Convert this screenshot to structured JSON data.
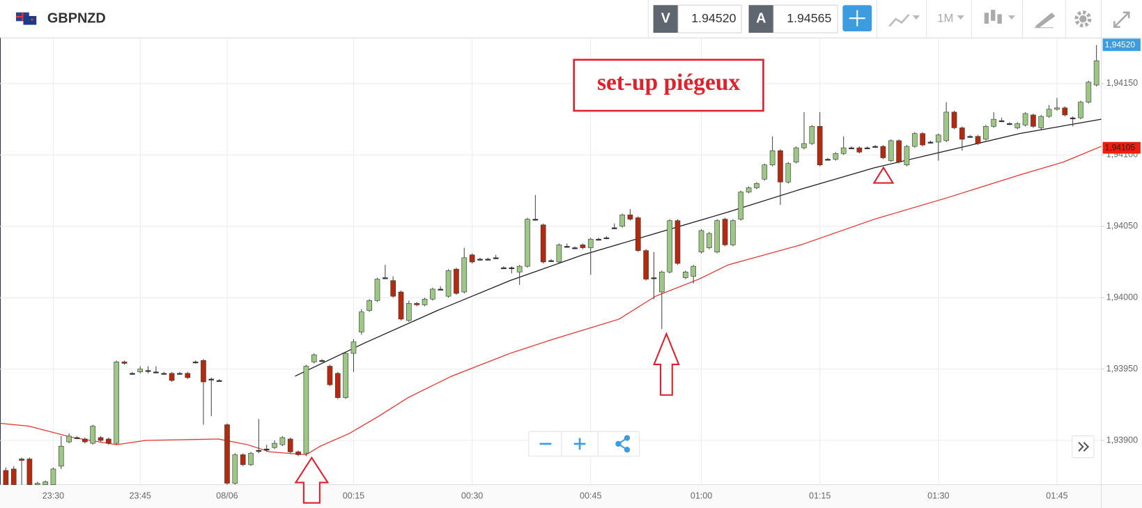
{
  "header": {
    "symbol": "GBPNZD",
    "sell_label": "V",
    "sell_price": "1.94520",
    "buy_label": "A",
    "buy_price": "1.94565",
    "timeframe": "1M"
  },
  "chart_data": {
    "type": "candlestick",
    "annotation": "set-up piégeux",
    "price_marker": "1,94520",
    "ma_marker": {
      "value": 1.94105,
      "label": "1,94105"
    },
    "up_color": "#9dc784",
    "down_color": "#b5290f",
    "xlim": [
      -0.74,
      138.6
    ],
    "ylim": [
      1.93869,
      1.94182
    ],
    "yticks": [
      {
        "value": 1.939,
        "label": "1,93900"
      },
      {
        "value": 1.9395,
        "label": "1,93950"
      },
      {
        "value": 1.94,
        "label": "1,94000"
      },
      {
        "value": 1.9405,
        "label": "1,94050"
      },
      {
        "value": 1.941,
        "label": "1,94100"
      },
      {
        "value": 1.9415,
        "label": "1,94150"
      }
    ],
    "grid": true,
    "categories": [
      null,
      null,
      null,
      null,
      null,
      null,
      "23:30",
      null,
      null,
      null,
      null,
      null,
      null,
      null,
      null,
      null,
      null,
      "23:45",
      null,
      null,
      null,
      null,
      null,
      null,
      null,
      null,
      null,
      null,
      "08/06",
      null,
      null,
      null,
      null,
      null,
      null,
      null,
      null,
      null,
      null,
      null,
      null,
      null,
      null,
      null,
      "00:15",
      null,
      null,
      null,
      null,
      null,
      null,
      null,
      null,
      null,
      null,
      null,
      null,
      null,
      null,
      "00:30",
      null,
      null,
      null,
      null,
      null,
      null,
      null,
      null,
      null,
      null,
      null,
      null,
      null,
      null,
      "00:45",
      null,
      null,
      null,
      null,
      null,
      null,
      null,
      null,
      null,
      null,
      null,
      null,
      null,
      "01:00",
      null,
      null,
      null,
      null,
      null,
      null,
      null,
      null,
      null,
      null,
      null,
      null,
      null,
      null,
      "01:15",
      null,
      null,
      null,
      null,
      null,
      null,
      null,
      null,
      null,
      null,
      null,
      null,
      null,
      null,
      "01:30",
      null,
      null,
      null,
      null,
      null,
      null,
      null,
      null,
      null,
      null,
      null,
      null,
      null,
      null,
      "01:45",
      null,
      null,
      null,
      null,
      null
    ],
    "open": [
      1.93879,
      1.9388,
      1.93887,
      1.93887,
      1.93869,
      1.93869,
      1.93869,
      1.93882,
      1.93899,
      1.93902,
      1.93901,
      1.93898,
      1.93902,
      1.93901,
      1.93898,
      1.93955,
      1.93947,
      1.93948,
      1.93949,
      1.93948,
      1.93947,
      1.93947,
      1.93947,
      1.93947,
      1.93955,
      1.93956,
      1.93943,
      1.93942,
      1.93911,
      1.9387,
      1.9389,
      1.93883,
      1.93893,
      1.93894,
      1.93895,
      1.93897,
      1.93901,
      1.93892,
      1.93891,
      1.93955,
      1.93956,
      1.93952,
      1.93947,
      1.9393,
      1.93961,
      1.93976,
      1.93991,
      1.93998,
      1.94014,
      1.94012,
      1.94004,
      1.93984,
      1.93996,
      1.93995,
      1.93999,
      1.94006,
      1.94001,
      1.9402,
      1.94004,
      1.9403,
      1.94027,
      1.94027,
      1.94028,
      1.94021,
      1.94021,
      1.94018,
      1.94022,
      1.94055,
      1.94051,
      1.94026,
      1.94025,
      1.94036,
      1.94035,
      1.94037,
      1.94035,
      1.94041,
      1.94042,
      1.94049,
      1.9405,
      1.94058,
      1.94056,
      1.94033,
      1.94014,
      1.94004,
      1.94018,
      1.94054,
      1.94014,
      1.94015,
      1.94032,
      1.94035,
      1.94032,
      1.94055,
      1.94037,
      1.94055,
      1.94074,
      1.94077,
      1.94083,
      1.94093,
      1.94103,
      1.94081,
      1.94095,
      1.94105,
      1.94108,
      1.9412,
      1.94097,
      1.94097,
      1.94101,
      1.94105,
      1.94105,
      1.94105,
      1.94106,
      1.94106,
      1.94096,
      1.9411,
      1.94093,
      1.94106,
      1.94115,
      1.94109,
      1.94109,
      1.9411,
      1.9413,
      1.94119,
      1.94113,
      1.94113,
      1.94111,
      1.9412,
      1.94124,
      1.94122,
      1.94119,
      1.94121,
      1.94128,
      1.94119,
      1.94127,
      1.94132,
      1.94133,
      1.94126,
      1.94126,
      1.94137,
      1.94149
    ],
    "high": [
      1.93881,
      1.93882,
      1.93888,
      1.93888,
      1.93871,
      1.93872,
      1.93881,
      1.93903,
      1.93905,
      1.93903,
      1.93902,
      1.93911,
      1.93903,
      1.93902,
      1.93956,
      1.93956,
      1.93948,
      1.93952,
      1.93952,
      1.93952,
      1.93948,
      1.93948,
      1.93948,
      1.93948,
      1.93956,
      1.93957,
      1.93944,
      1.93943,
      1.93912,
      1.93891,
      1.93891,
      1.93892,
      1.93915,
      1.93897,
      1.939,
      1.93903,
      1.93902,
      1.93893,
      1.93953,
      1.93961,
      1.93957,
      1.93953,
      1.93948,
      1.93962,
      1.93971,
      1.93992,
      1.93999,
      1.94014,
      1.94023,
      1.94015,
      1.94005,
      1.93998,
      1.93997,
      1.94,
      1.94007,
      1.94008,
      1.9402,
      1.94021,
      1.94035,
      1.94031,
      1.94028,
      1.94028,
      1.9403,
      1.94022,
      1.94022,
      1.94023,
      1.94056,
      1.94072,
      1.94052,
      1.94027,
      1.94038,
      1.94038,
      1.94036,
      1.94038,
      1.94042,
      1.94042,
      1.94043,
      1.94052,
      1.94059,
      1.94062,
      1.94057,
      1.94034,
      1.94032,
      1.94019,
      1.94055,
      1.94055,
      1.94019,
      1.94023,
      1.94048,
      1.94046,
      1.94055,
      1.94056,
      1.94055,
      1.94075,
      1.94078,
      1.94081,
      1.94094,
      1.94113,
      1.94104,
      1.94095,
      1.94106,
      1.9413,
      1.94121,
      1.9413,
      1.94098,
      1.94102,
      1.94113,
      1.94106,
      1.94106,
      1.94106,
      1.94107,
      1.94107,
      1.94111,
      1.94111,
      1.94107,
      1.94116,
      1.94116,
      1.9411,
      1.94115,
      1.94137,
      1.94131,
      1.9412,
      1.94114,
      1.94114,
      1.94121,
      1.9413,
      1.94126,
      1.94123,
      1.94123,
      1.9413,
      1.94129,
      1.94128,
      1.94135,
      1.9414,
      1.94134,
      1.94127,
      1.94138,
      1.94152,
      1.94177
    ],
    "low": [
      1.93869,
      1.93869,
      1.93869,
      1.93869,
      1.93869,
      1.93869,
      1.93869,
      1.9388,
      1.93898,
      1.93901,
      1.93898,
      1.93897,
      1.93899,
      1.93897,
      1.93897,
      1.93953,
      1.93946,
      1.93947,
      1.93947,
      1.93947,
      1.93946,
      1.93941,
      1.93946,
      1.93943,
      1.93954,
      1.93911,
      1.93917,
      1.93941,
      1.93869,
      1.93869,
      1.93882,
      1.93882,
      1.93891,
      1.93892,
      1.93894,
      1.93896,
      1.93891,
      1.93889,
      1.93889,
      1.93954,
      1.93955,
      1.93938,
      1.93929,
      1.93929,
      1.93948,
      1.93974,
      1.9399,
      1.93997,
      1.94013,
      1.94,
      1.93984,
      1.93983,
      1.93994,
      1.93994,
      1.93998,
      1.94005,
      1.94,
      1.94002,
      1.94003,
      1.94024,
      1.94026,
      1.94026,
      1.94027,
      1.9402,
      1.94017,
      1.94009,
      1.94021,
      1.94054,
      1.94024,
      1.94025,
      1.94024,
      1.94035,
      1.94034,
      1.94034,
      1.94016,
      1.9404,
      1.94041,
      1.94048,
      1.94049,
      1.94054,
      1.94032,
      1.94012,
      1.93999,
      1.93978,
      1.94017,
      1.94023,
      1.94013,
      1.9401,
      1.94031,
      1.94034,
      1.94031,
      1.94036,
      1.94036,
      1.94054,
      1.94073,
      1.94076,
      1.94082,
      1.94092,
      1.94065,
      1.9408,
      1.94094,
      1.94104,
      1.94107,
      1.94092,
      1.94096,
      1.94096,
      1.941,
      1.94104,
      1.94101,
      1.94104,
      1.94105,
      1.94097,
      1.94095,
      1.94094,
      1.94092,
      1.94105,
      1.94106,
      1.94108,
      1.94096,
      1.94109,
      1.94118,
      1.94103,
      1.94112,
      1.94107,
      1.9411,
      1.94119,
      1.94123,
      1.94121,
      1.94118,
      1.9412,
      1.94119,
      1.94118,
      1.94126,
      1.94131,
      1.94127,
      1.9412,
      1.94125,
      1.94136,
      1.94148
    ],
    "close": [
      1.93869,
      1.93869,
      1.93886,
      1.93869,
      1.9387,
      1.93871,
      1.9388,
      1.93896,
      1.93903,
      1.93902,
      1.93899,
      1.9391,
      1.939,
      1.93898,
      1.93955,
      1.93954,
      1.93947,
      1.9395,
      1.93949,
      1.93948,
      1.93947,
      1.93942,
      1.93947,
      1.93944,
      1.93955,
      1.93941,
      1.93943,
      1.93942,
      1.9387,
      1.9389,
      1.93883,
      1.93891,
      1.93893,
      1.93894,
      1.93898,
      1.93902,
      1.93892,
      1.9389,
      1.93952,
      1.9396,
      1.93956,
      1.93939,
      1.9393,
      1.93961,
      1.93969,
      1.9399,
      1.93998,
      1.94013,
      1.94014,
      1.94001,
      1.93985,
      1.93996,
      1.93995,
      1.93999,
      1.94006,
      1.94006,
      1.94019,
      1.94003,
      1.94028,
      1.94025,
      1.94027,
      1.94027,
      1.94028,
      1.94021,
      1.94021,
      1.94022,
      1.94055,
      1.94055,
      1.94025,
      1.94026,
      1.94037,
      1.94036,
      1.94035,
      1.94035,
      1.94041,
      1.94041,
      1.94042,
      1.94049,
      1.94058,
      1.94055,
      1.94033,
      1.94013,
      1.94014,
      1.94018,
      1.94054,
      1.94024,
      1.94018,
      1.94022,
      1.94047,
      1.94045,
      1.94054,
      1.94037,
      1.94054,
      1.94074,
      1.94077,
      1.9408,
      1.94093,
      1.94103,
      1.94081,
      1.94094,
      1.94105,
      1.94108,
      1.9412,
      1.94093,
      1.94097,
      1.94101,
      1.94105,
      1.94105,
      1.94102,
      1.94105,
      1.94106,
      1.94098,
      1.9411,
      1.94095,
      1.94106,
      1.94115,
      1.94107,
      1.94109,
      1.94114,
      1.9413,
      1.94119,
      1.94111,
      1.94113,
      1.94108,
      1.9412,
      1.94125,
      1.94124,
      1.94122,
      1.94122,
      1.94129,
      1.9412,
      1.94127,
      1.94132,
      1.94133,
      1.94128,
      1.94126,
      1.94137,
      1.94151,
      1.94166
    ],
    "lines": [
      {
        "color": "#e8302a",
        "x": [
          -0.7,
          2.9,
          8.5,
          14,
          17.7,
          26.9,
          30.6,
          33.4,
          38,
          39.8,
          43.5,
          47.2,
          50.9,
          56.4,
          63.8,
          69.3,
          77.6,
          82.2,
          87.7,
          91.4,
          100.6,
          109.9,
          119.1,
          128.3,
          133.8,
          138.6
        ],
        "values": [
          1.93912,
          1.9391,
          1.93902,
          1.93897,
          1.939,
          1.93901,
          1.93897,
          1.93892,
          1.9389,
          1.93896,
          1.93905,
          1.93917,
          1.9393,
          1.93945,
          1.93961,
          1.93971,
          1.93985,
          1.94001,
          1.94013,
          1.94023,
          1.94037,
          1.94055,
          1.9407,
          1.94086,
          1.94095,
          1.94106
        ]
      },
      {
        "color": "#1a1a1a",
        "x": [
          36.6,
          45.3,
          54.6,
          63.8,
          73,
          82.2,
          91.4,
          100.6,
          109.9,
          119.1,
          128.3,
          138.6
        ],
        "values": [
          1.93945,
          1.93968,
          1.93991,
          1.94012,
          1.9403,
          1.94045,
          1.9406,
          1.94076,
          1.94091,
          1.94103,
          1.94115,
          1.94125
        ]
      }
    ]
  }
}
